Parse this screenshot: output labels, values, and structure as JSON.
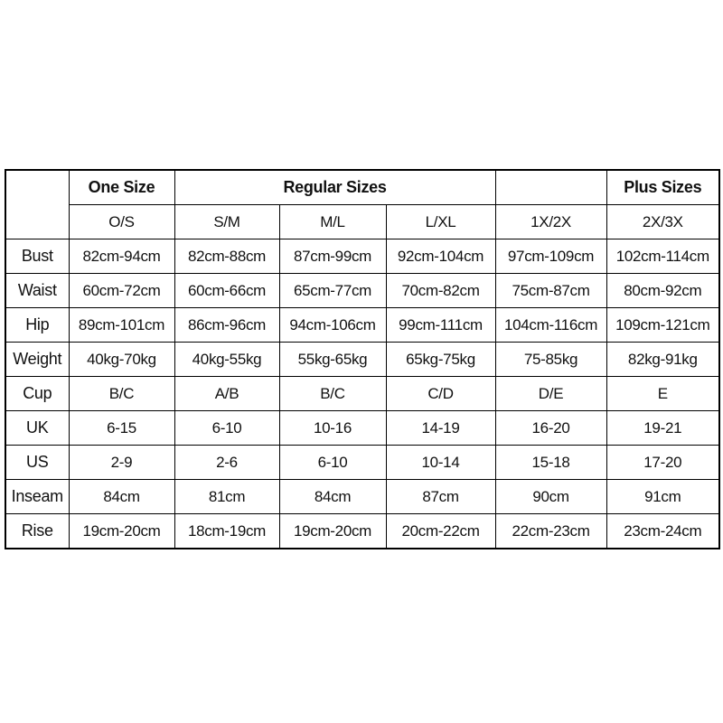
{
  "table": {
    "group_headers": [
      "One Size",
      "Regular Sizes",
      "Plus Sizes"
    ],
    "sizes": [
      "O/S",
      "S/M",
      "M/L",
      "L/XL",
      "1X/2X",
      "2X/3X"
    ],
    "rows": [
      [
        "Bust",
        "82cm-94cm",
        "82cm-88cm",
        "87cm-99cm",
        "92cm-104cm",
        "97cm-109cm",
        "102cm-114cm"
      ],
      [
        "Waist",
        "60cm-72cm",
        "60cm-66cm",
        "65cm-77cm",
        "70cm-82cm",
        "75cm-87cm",
        "80cm-92cm"
      ],
      [
        "Hip",
        "89cm-101cm",
        "86cm-96cm",
        "94cm-106cm",
        "99cm-111cm",
        "104cm-116cm",
        "109cm-121cm"
      ],
      [
        "Weight",
        "40kg-70kg",
        "40kg-55kg",
        "55kg-65kg",
        "65kg-75kg",
        "75-85kg",
        "82kg-91kg"
      ],
      [
        "Cup",
        "B/C",
        "A/B",
        "B/C",
        "C/D",
        "D/E",
        "E"
      ],
      [
        "UK",
        "6-15",
        "6-10",
        "10-16",
        "14-19",
        "16-20",
        "19-21"
      ],
      [
        "US",
        "2-9",
        "2-6",
        "6-10",
        "10-14",
        "15-18",
        "17-20"
      ],
      [
        "Inseam",
        "84cm",
        "81cm",
        "84cm",
        "87cm",
        "90cm",
        "91cm"
      ],
      [
        "Rise",
        "19cm-20cm",
        "18cm-19cm",
        "19cm-20cm",
        "20cm-22cm",
        "22cm-23cm",
        "23cm-24cm"
      ]
    ]
  }
}
